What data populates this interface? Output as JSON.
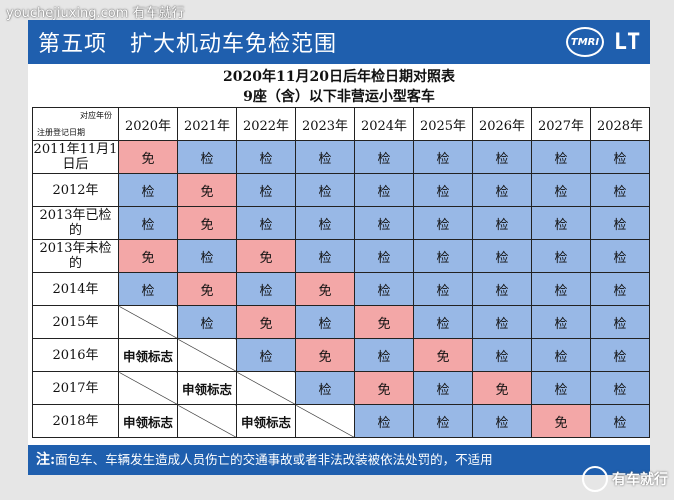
{
  "watermark_top": "youchejiuxing.com 有车就行",
  "header": {
    "title": "第五项　扩大机动车免检范围",
    "logo_left": "TMRI",
    "logo_right": "LT"
  },
  "table_title_1": "2020年11月20日后年检日期对照表",
  "table_title_2": "9座（含）以下非营运小型客车",
  "corner": {
    "top": "对应年份",
    "bottom": "注册登记日期"
  },
  "years": [
    "2020年",
    "2021年",
    "2022年",
    "2023年",
    "2024年",
    "2025年",
    "2026年",
    "2027年",
    "2028年"
  ],
  "rows": [
    {
      "label": "2011年11月1日后",
      "cells": [
        "免",
        "检",
        "检",
        "检",
        "检",
        "检",
        "检",
        "检",
        "检"
      ]
    },
    {
      "label": "2012年",
      "cells": [
        "检",
        "免",
        "检",
        "检",
        "检",
        "检",
        "检",
        "检",
        "检"
      ]
    },
    {
      "label": "2013年已检的",
      "cells": [
        "检",
        "免",
        "检",
        "检",
        "检",
        "检",
        "检",
        "检",
        "检"
      ]
    },
    {
      "label": "2013年未检的",
      "cells": [
        "免",
        "检",
        "免",
        "检",
        "检",
        "检",
        "检",
        "检",
        "检"
      ]
    },
    {
      "label": "2014年",
      "cells": [
        "检",
        "免",
        "检",
        "免",
        "检",
        "检",
        "检",
        "检",
        "检"
      ]
    },
    {
      "label": "2015年",
      "cells": [
        "",
        "检",
        "免",
        "检",
        "免",
        "检",
        "检",
        "检",
        "检"
      ]
    },
    {
      "label": "2016年",
      "cells": [
        "申领标志",
        "",
        "检",
        "免",
        "检",
        "免",
        "检",
        "检",
        "检"
      ]
    },
    {
      "label": "2017年",
      "cells": [
        "",
        "申领标志",
        "",
        "检",
        "免",
        "检",
        "免",
        "检",
        "检"
      ]
    },
    {
      "label": "2018年",
      "cells": [
        "申领标志",
        "",
        "申领标志",
        "",
        "检",
        "检",
        "检",
        "免",
        "检"
      ]
    }
  ],
  "note": {
    "prefix": "注:",
    "text": "面包车、车辆发生造成人员伤亡的交通事故或者非法改装被依法处罚的，不适用"
  },
  "watermark_bottom": "有车就行",
  "colors": {
    "header": "#1f5fae",
    "inspect": "#98b8e6",
    "exempt": "#f3a7a7"
  }
}
